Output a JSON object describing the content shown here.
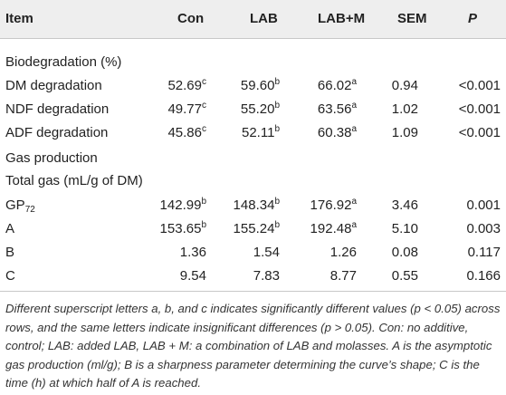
{
  "header": {
    "item": "Item",
    "con": "Con",
    "lab": "LAB",
    "lab_m": "LAB+M",
    "sem": "SEM",
    "p": "P"
  },
  "sections": {
    "biodeg": "Biodegradation (%)",
    "gas": "Gas production",
    "total_gas": "Total gas (mL/g of DM)"
  },
  "rows": [
    {
      "item": "DM degradation",
      "con": "52.69",
      "con_sup": "c",
      "lab": "59.60",
      "lab_sup": "b",
      "labm": "66.02",
      "labm_sup": "a",
      "sem": "0.94",
      "p": "<0.001"
    },
    {
      "item": "NDF degradation",
      "con": "49.77",
      "con_sup": "c",
      "lab": "55.20",
      "lab_sup": "b",
      "labm": "63.56",
      "labm_sup": "a",
      "sem": "1.02",
      "p": "<0.001"
    },
    {
      "item": "ADF degradation",
      "con": "45.86",
      "con_sup": "c",
      "lab": "52.11",
      "lab_sup": "b",
      "labm": "60.38",
      "labm_sup": "a",
      "sem": "1.09",
      "p": "<0.001"
    },
    {
      "item": "GP",
      "item_sub": "72",
      "con": "142.99",
      "con_sup": "b",
      "lab": "148.34",
      "lab_sup": "b",
      "labm": "176.92",
      "labm_sup": "a",
      "sem": "3.46",
      "p": "0.001"
    },
    {
      "item": "A",
      "con": "153.65",
      "con_sup": "b",
      "lab": "155.24",
      "lab_sup": "b",
      "labm": "192.48",
      "labm_sup": "a",
      "sem": "5.10",
      "p": "0.003"
    },
    {
      "item": "B",
      "con": "1.36",
      "lab": "1.54",
      "labm": "1.26",
      "sem": "0.08",
      "p": "0.117"
    },
    {
      "item": "C",
      "con": "9.54",
      "lab": "7.83",
      "labm": "8.77",
      "sem": "0.55",
      "p": "0.166"
    }
  ],
  "footnote": "Different superscript letters a, b, and c indicates significantly different values (p < 0.05) across rows, and the same letters indicate insignificant differences (p > 0.05). Con: no additive, control; LAB: added LAB, LAB + M: a combination of LAB and molasses. A is the asymptotic gas production (ml/g); B is a sharpness parameter determining the curve’s shape; C is the time (h) at which half of A is reached."
}
